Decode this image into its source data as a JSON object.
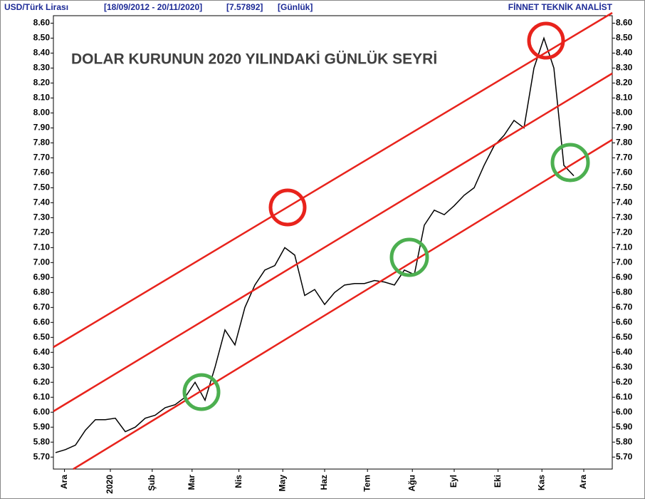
{
  "header": {
    "parts": [
      "USD/Türk Lirası",
      "[18/09/2012 - 20/11/2020]",
      "[7.57892]",
      "[Günlük]"
    ],
    "brand": "FİNNET TEKNİK ANALİST"
  },
  "chart_data": {
    "type": "line",
    "title": "DOLAR KURUNUN 2020 YILINDAKİ GÜNLÜK SEYRİ",
    "color": "#000000",
    "x": [
      0,
      1,
      2,
      3,
      4,
      5,
      6,
      7,
      8,
      9,
      10,
      11,
      12,
      13,
      14,
      15,
      16,
      17,
      18,
      19,
      20,
      21,
      22,
      23,
      24,
      25,
      26,
      27,
      28,
      29,
      30,
      31,
      32,
      33,
      34,
      35,
      36,
      37,
      38,
      39,
      40,
      41,
      42,
      43,
      44,
      45,
      46,
      47,
      48,
      49,
      50,
      51,
      52
    ],
    "values": [
      5.73,
      5.75,
      5.78,
      5.88,
      5.95,
      5.95,
      5.96,
      5.87,
      5.9,
      5.96,
      5.98,
      6.03,
      6.05,
      6.1,
      6.2,
      6.08,
      6.3,
      6.55,
      6.45,
      6.7,
      6.85,
      6.95,
      6.98,
      7.1,
      7.05,
      6.78,
      6.82,
      6.72,
      6.8,
      6.85,
      6.86,
      6.86,
      6.88,
      6.87,
      6.85,
      6.95,
      6.92,
      7.25,
      7.35,
      7.32,
      7.38,
      7.45,
      7.5,
      7.65,
      7.78,
      7.85,
      7.95,
      7.9,
      8.3,
      8.5,
      8.3,
      7.65,
      7.58
    ],
    "xlim": [
      0,
      54
    ],
    "xticks": [
      {
        "value": 0.9,
        "label": "Ara"
      },
      {
        "value": 5.5,
        "label": "2020"
      },
      {
        "value": 9.7,
        "label": "Şub"
      },
      {
        "value": 13.7,
        "label": "Mar"
      },
      {
        "value": 18.4,
        "label": "Nis"
      },
      {
        "value": 22.8,
        "label": "May"
      },
      {
        "value": 27,
        "label": "Haz"
      },
      {
        "value": 31.3,
        "label": "Tem"
      },
      {
        "value": 35.8,
        "label": "Ağu"
      },
      {
        "value": 40,
        "label": "Eyl"
      },
      {
        "value": 44.4,
        "label": "Eki"
      },
      {
        "value": 48.8,
        "label": "Kas"
      },
      {
        "value": 53,
        "label": "Ara"
      }
    ],
    "ylim": [
      5.62,
      8.65
    ],
    "yticks": [
      {
        "value": 5.7,
        "label": "5.70"
      },
      {
        "value": 5.8,
        "label": "5.80"
      },
      {
        "value": 5.9,
        "label": "5.90"
      },
      {
        "value": 6,
        "label": "6.00"
      },
      {
        "value": 6.1,
        "label": "6.10"
      },
      {
        "value": 6.2,
        "label": "6.20"
      },
      {
        "value": 6.3,
        "label": "6.30"
      },
      {
        "value": 6.4,
        "label": "6.40"
      },
      {
        "value": 6.5,
        "label": "6.50"
      },
      {
        "value": 6.6,
        "label": "6.60"
      },
      {
        "value": 6.7,
        "label": "6.70"
      },
      {
        "value": 6.8,
        "label": "6.80"
      },
      {
        "value": 6.9,
        "label": "6.90"
      },
      {
        "value": 7,
        "label": "7.00"
      },
      {
        "value": 7.1,
        "label": "7.10"
      },
      {
        "value": 7.2,
        "label": "7.20"
      },
      {
        "value": 7.3,
        "label": "7.30"
      },
      {
        "value": 7.4,
        "label": "7.40"
      },
      {
        "value": 7.5,
        "label": "7.50"
      },
      {
        "value": 7.6,
        "label": "7.60"
      },
      {
        "value": 7.7,
        "label": "7.70"
      },
      {
        "value": 7.8,
        "label": "7.80"
      },
      {
        "value": 7.9,
        "label": "7.90"
      },
      {
        "value": 8,
        "label": "8.00"
      },
      {
        "value": 8.1,
        "label": "8.10"
      },
      {
        "value": 8.2,
        "label": "8.20"
      },
      {
        "value": 8.3,
        "label": "8.30"
      },
      {
        "value": 8.4,
        "label": "8.40"
      },
      {
        "value": 8.5,
        "label": "8.50"
      },
      {
        "value": 8.6,
        "label": "8.60"
      }
    ]
  }
}
